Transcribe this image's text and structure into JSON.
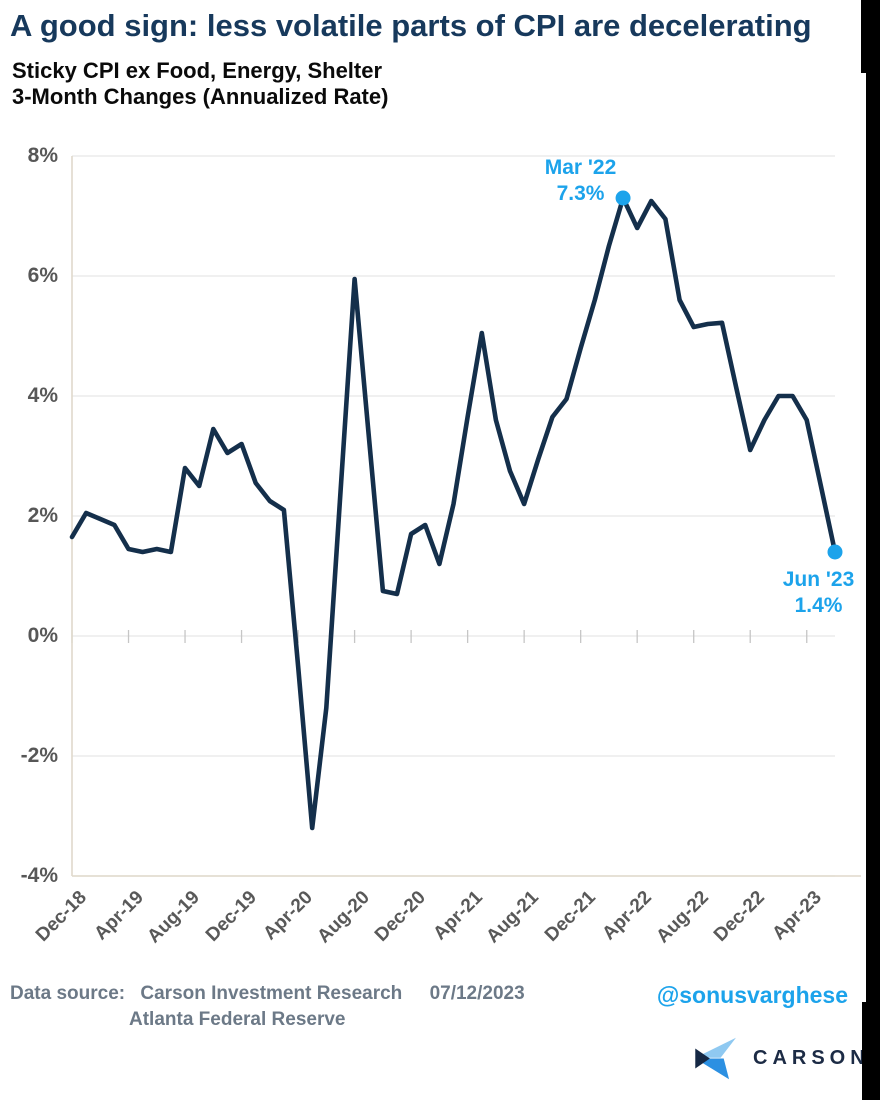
{
  "title": "A good sign: less volatile parts of CPI are decelerating",
  "subtitle_line1": "Sticky CPI ex Food, Energy, Shelter",
  "subtitle_line2": "3-Month Changes (Annualized Rate)",
  "colors": {
    "title_navy": "#17395C",
    "line_navy": "#142F4B",
    "accent_blue": "#1CA3EB",
    "y_label_gray": "#575757",
    "x_label_gray": "#595959",
    "grid_gray": "#E6E6E6",
    "tick_gray": "#C6C6C6",
    "border_tan": "#E0D9CB",
    "footer_gray": "#6C7987",
    "logo_navy": "#1C2B45",
    "logo_light_blue": "#8FC9F1",
    "logo_mid_blue": "#2C90E2"
  },
  "chart_data": {
    "type": "line",
    "title": "Sticky CPI ex Food, Energy, Shelter — 3-Month Changes (Annualized Rate)",
    "x": [
      "Dec-18",
      "Jan-19",
      "Feb-19",
      "Mar-19",
      "Apr-19",
      "May-19",
      "Jun-19",
      "Jul-19",
      "Aug-19",
      "Sep-19",
      "Oct-19",
      "Nov-19",
      "Dec-19",
      "Jan-20",
      "Feb-20",
      "Mar-20",
      "Apr-20",
      "May-20",
      "Jun-20",
      "Jul-20",
      "Aug-20",
      "Sep-20",
      "Oct-20",
      "Nov-20",
      "Dec-20",
      "Jan-21",
      "Feb-21",
      "Mar-21",
      "Apr-21",
      "May-21",
      "Jun-21",
      "Jul-21",
      "Aug-21",
      "Sep-21",
      "Oct-21",
      "Nov-21",
      "Dec-21",
      "Jan-22",
      "Feb-22",
      "Mar-22",
      "Apr-22",
      "May-22",
      "Jun-22",
      "Jul-22",
      "Aug-22",
      "Sep-22",
      "Oct-22",
      "Nov-22",
      "Dec-22",
      "Jan-23",
      "Feb-23",
      "Mar-23",
      "Apr-23",
      "May-23",
      "Jun-23"
    ],
    "values": [
      1.65,
      2.05,
      1.95,
      1.85,
      1.45,
      1.4,
      1.45,
      1.4,
      2.8,
      2.5,
      3.45,
      3.05,
      3.2,
      2.55,
      2.25,
      2.1,
      -0.5,
      -3.2,
      -1.2,
      2.4,
      5.95,
      3.35,
      0.75,
      0.7,
      1.7,
      1.85,
      1.2,
      2.2,
      3.65,
      5.05,
      3.6,
      2.75,
      2.2,
      2.95,
      3.65,
      3.95,
      4.8,
      5.6,
      6.5,
      7.3,
      6.8,
      7.25,
      6.95,
      5.6,
      5.15,
      5.2,
      5.22,
      4.15,
      3.1,
      3.6,
      4.0,
      4.0,
      3.6,
      2.5,
      1.4
    ],
    "x_tick_labels": [
      "Dec-18",
      "Apr-19",
      "Aug-19",
      "Dec-19",
      "Apr-20",
      "Aug-20",
      "Dec-20",
      "Apr-21",
      "Aug-21",
      "Dec-21",
      "Apr-22",
      "Aug-22",
      "Dec-22",
      "Apr-23"
    ],
    "y_ticks": [
      "8%",
      "6%",
      "4%",
      "2%",
      "0%",
      "-2%",
      "-4%"
    ],
    "ylim": [
      -4,
      8
    ],
    "grid": "horizontal",
    "legend": "none",
    "annotations": [
      {
        "label": "Mar '22",
        "value_label": "7.3%",
        "month": "Mar-22",
        "month_index": 39,
        "value": 7.3
      },
      {
        "label": "Jun '23",
        "value_label": "1.4%",
        "month": "Jun-23",
        "month_index": 54,
        "value": 1.4
      }
    ]
  },
  "footer": {
    "data_source_label": "Data source:",
    "source_line1": "Carson Investment Research",
    "date": "07/12/2023",
    "source_line2": "Atlanta Federal Reserve",
    "handle": "@sonusvarghese",
    "logo_text": "CARSON"
  }
}
